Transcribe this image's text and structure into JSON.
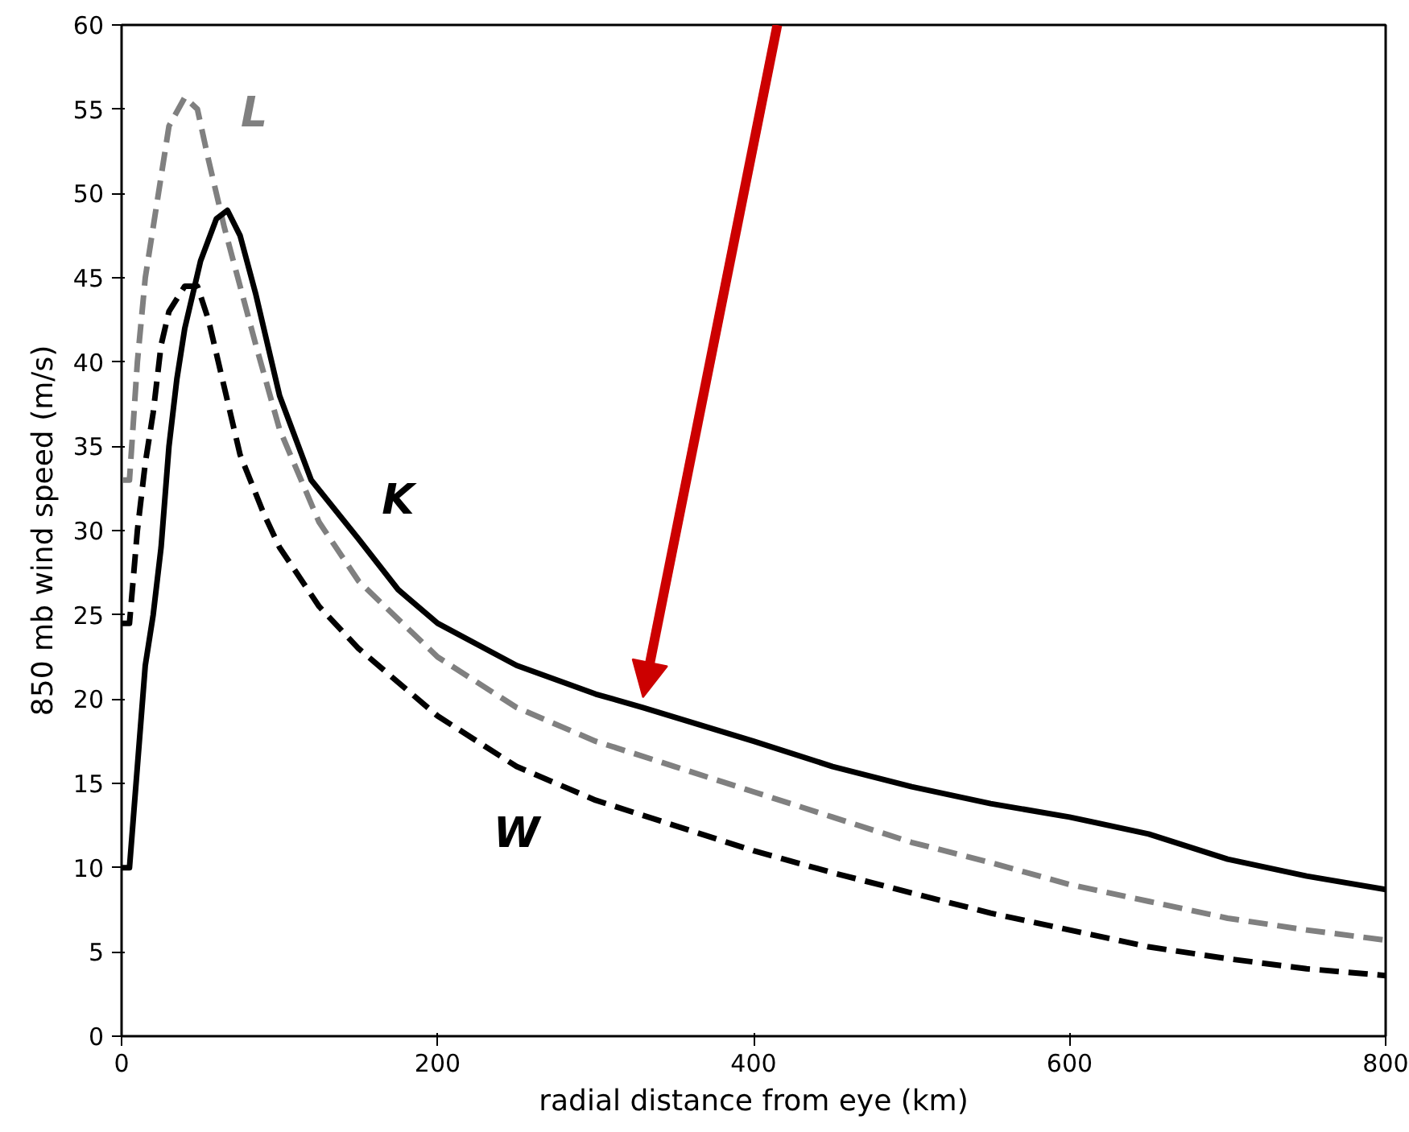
{
  "chart_data": {
    "type": "line",
    "xlabel": "radial distance from eye (km)",
    "ylabel": "850 mb wind speed (m/s)",
    "xlim": [
      0,
      800
    ],
    "ylim": [
      0,
      60
    ],
    "xticks": [
      0,
      200,
      400,
      600,
      800
    ],
    "yticks": [
      0,
      5,
      10,
      15,
      20,
      25,
      30,
      35,
      40,
      45,
      50,
      55,
      60
    ],
    "grid": false,
    "series": [
      {
        "name": "L",
        "color": "#808080",
        "line_style": "dashed",
        "x": [
          0,
          5,
          10,
          15,
          20,
          25,
          30,
          40,
          48,
          55,
          65,
          75,
          85,
          100,
          125,
          150,
          200,
          250,
          300,
          350,
          400,
          450,
          500,
          550,
          600,
          650,
          700,
          750,
          800
        ],
        "values": [
          33,
          33,
          40,
          45,
          48,
          51,
          54,
          55.7,
          55,
          52,
          48,
          44.5,
          41,
          36,
          30.5,
          27,
          22.5,
          19.5,
          17.5,
          16,
          14.5,
          13,
          11.5,
          10.3,
          9,
          8,
          7,
          6.3,
          5.7
        ]
      },
      {
        "name": "K",
        "color": "#000000",
        "line_style": "solid",
        "x": [
          0,
          5,
          10,
          15,
          20,
          25,
          30,
          35,
          40,
          50,
          60,
          67,
          75,
          85,
          100,
          120,
          150,
          175,
          200,
          250,
          300,
          330,
          400,
          450,
          500,
          550,
          600,
          650,
          700,
          750,
          800
        ],
        "values": [
          10,
          10,
          16,
          22,
          25,
          29,
          35,
          39,
          42,
          46,
          48.5,
          49,
          47.5,
          44,
          38,
          33,
          29.5,
          26.5,
          24.5,
          22,
          20.3,
          19.5,
          17.5,
          16,
          14.8,
          13.8,
          13,
          12,
          10.5,
          9.5,
          8.7
        ]
      },
      {
        "name": "W",
        "color": "#000000",
        "line_style": "dashed",
        "x": [
          0,
          5,
          10,
          15,
          20,
          25,
          30,
          40,
          48,
          55,
          65,
          75,
          90,
          100,
          125,
          150,
          200,
          250,
          300,
          350,
          400,
          450,
          500,
          550,
          600,
          650,
          700,
          750,
          800
        ],
        "values": [
          24.5,
          24.5,
          30,
          34,
          37,
          41,
          43,
          44.5,
          44.5,
          42.5,
          38.5,
          34.5,
          31,
          29,
          25.5,
          23,
          19,
          16,
          14,
          12.5,
          11,
          9.7,
          8.5,
          7.3,
          6.3,
          5.3,
          4.6,
          4,
          3.6
        ]
      }
    ]
  }
}
